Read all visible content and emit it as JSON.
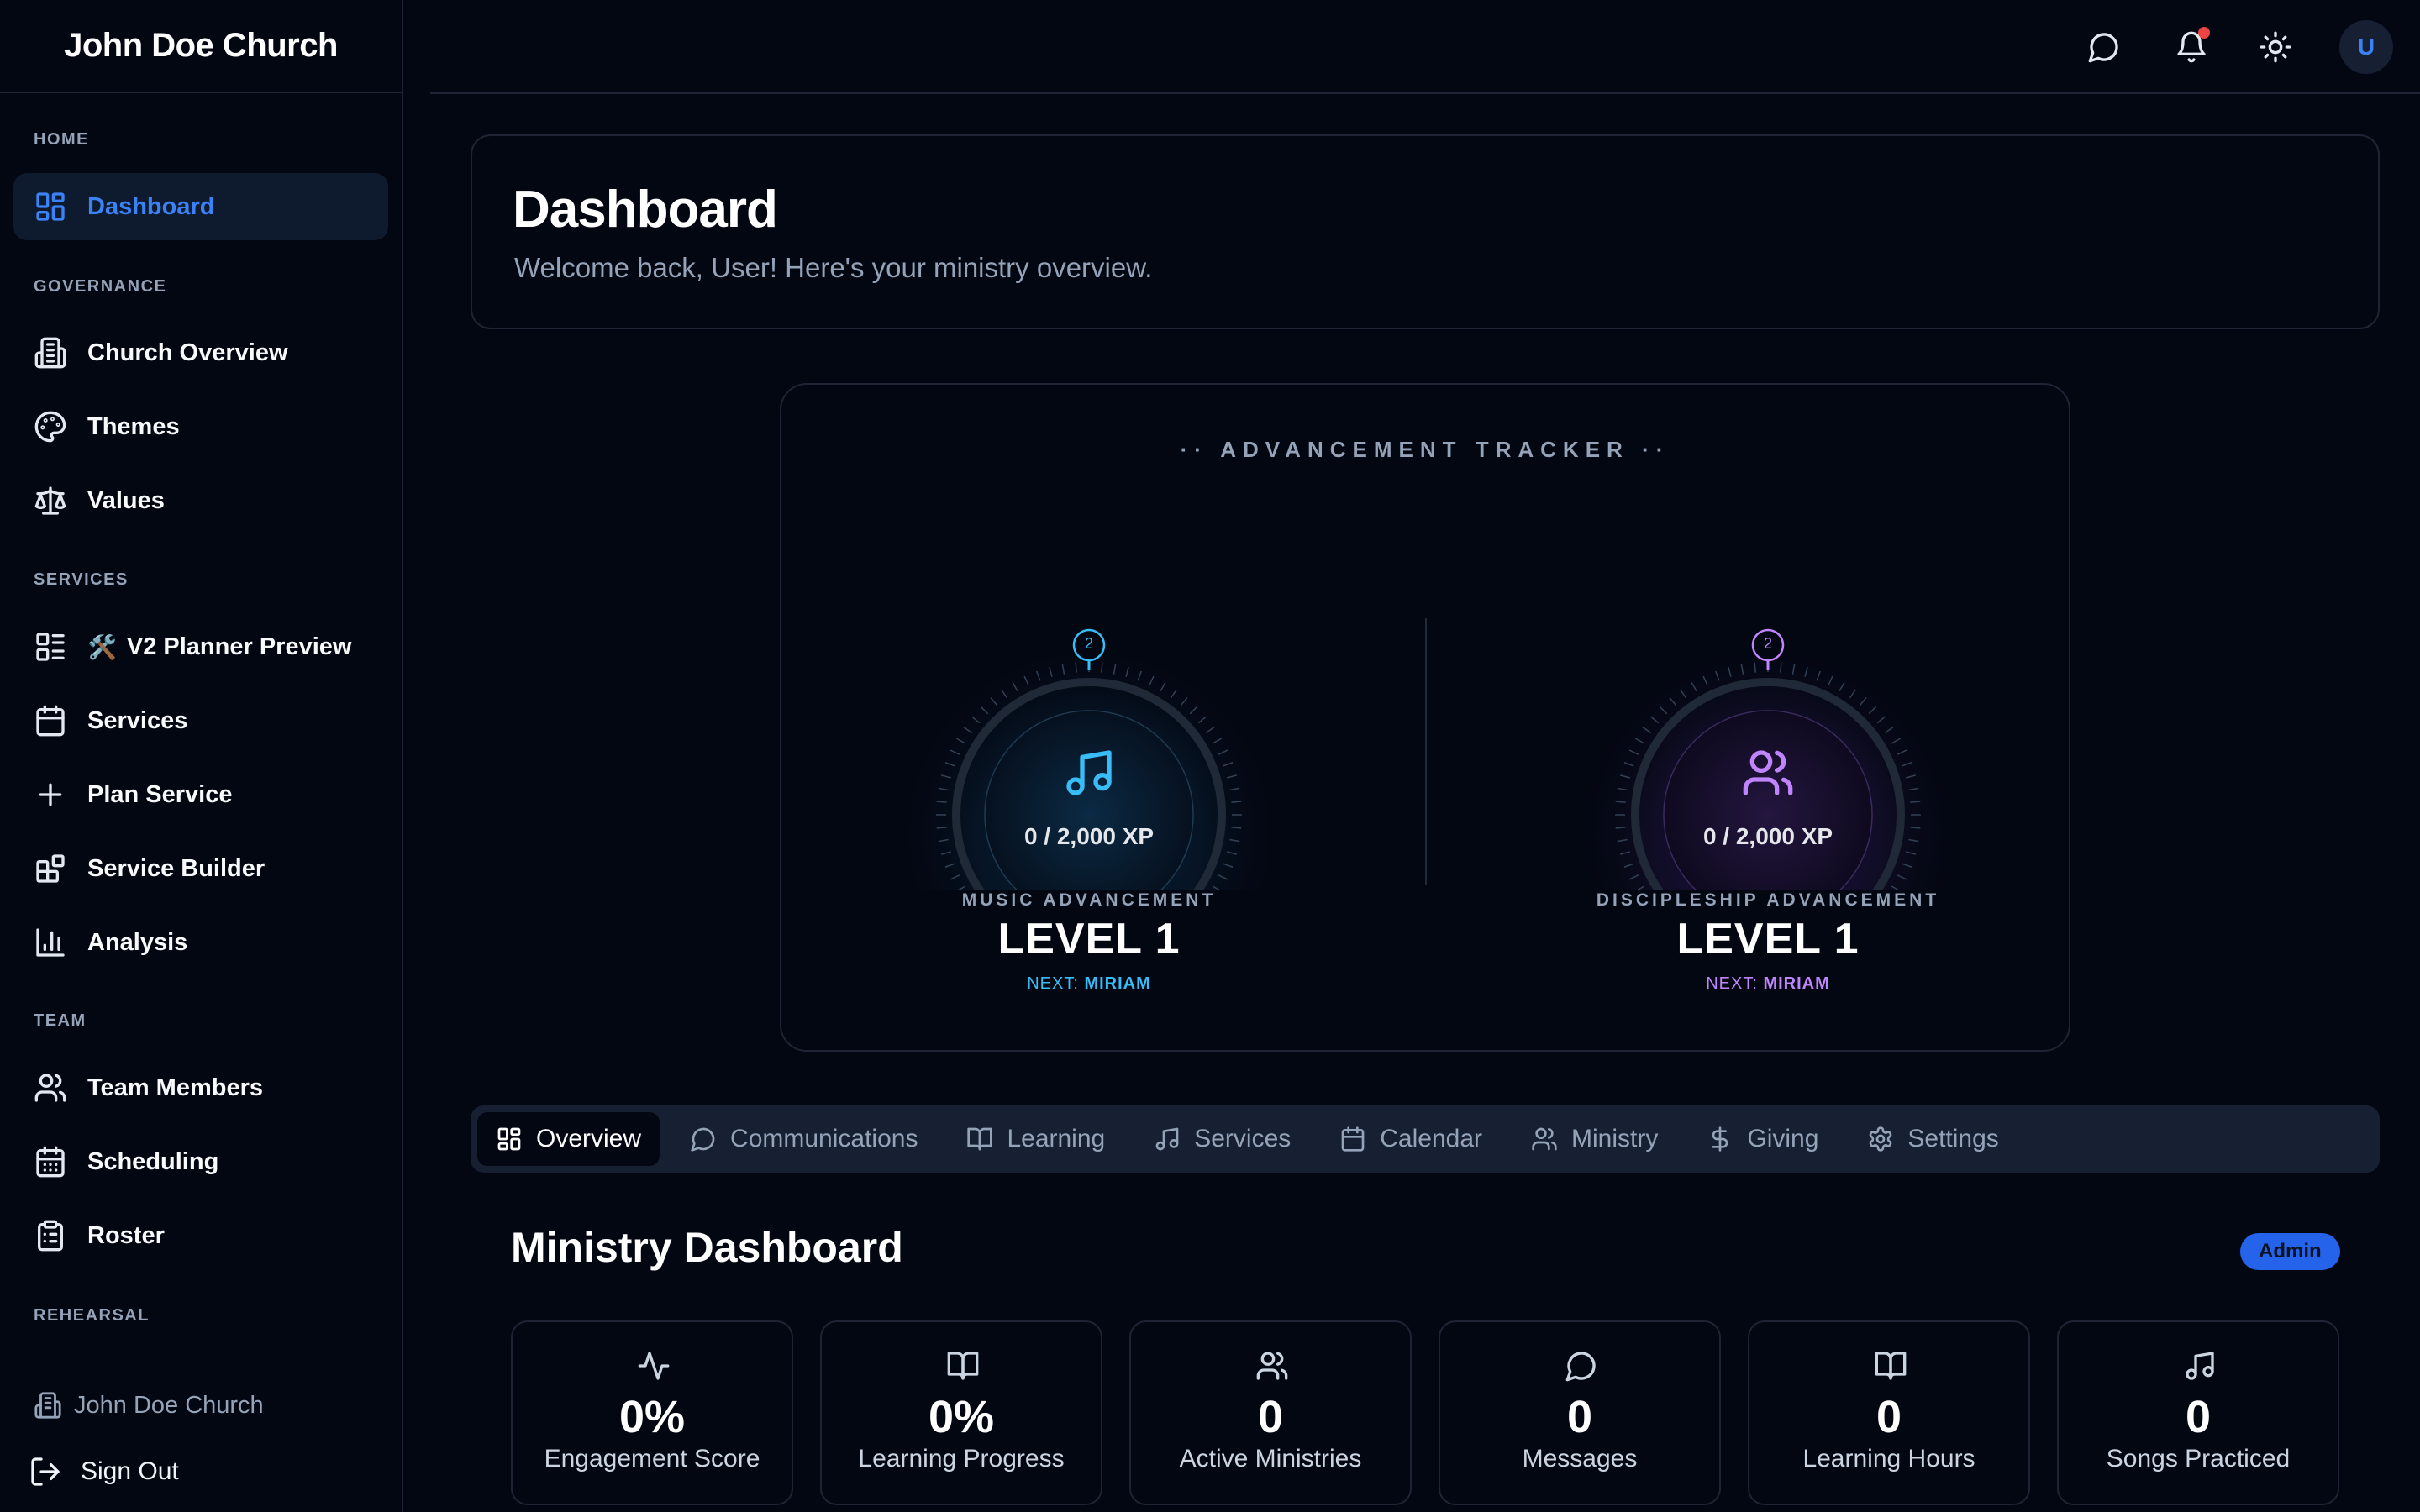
{
  "sidebar": {
    "brand": "John Doe Church",
    "sections": {
      "home": "HOME",
      "governance": "GOVERNANCE",
      "services": "SERVICES",
      "team": "TEAM",
      "rehearsal": "REHEARSAL"
    },
    "items": {
      "dashboard": "Dashboard",
      "church_overview": "Church Overview",
      "themes": "Themes",
      "values": "Values",
      "v2_planner_emoji": "🛠️",
      "v2_planner": "V2 Planner Preview",
      "services": "Services",
      "plan_service": "Plan Service",
      "service_builder": "Service Builder",
      "analysis": "Analysis",
      "team_members": "Team Members",
      "scheduling": "Scheduling",
      "roster": "Roster"
    },
    "footer_church": "John Doe Church",
    "sign_out": "Sign Out"
  },
  "topbar": {
    "avatar_initial": "U",
    "icons": [
      "message-icon",
      "bell-icon",
      "sun-icon"
    ]
  },
  "welcome": {
    "title": "Dashboard",
    "subtitle": "Welcome back, User! Here's your ministry overview."
  },
  "tracker": {
    "title": "·· ADVANCEMENT TRACKER ··",
    "music": {
      "badge": "2",
      "xp": "0 / 2,000 XP",
      "label": "MUSIC ADVANCEMENT",
      "level": "LEVEL 1",
      "next_prefix": "NEXT:",
      "next_name": "MIRIAM",
      "accent": "#38bdf8",
      "progress": 0
    },
    "discipleship": {
      "badge": "2",
      "xp": "0 / 2,000 XP",
      "label": "DISCIPLESHIP ADVANCEMENT",
      "level": "LEVEL 1",
      "next_prefix": "NEXT:",
      "next_name": "MIRIAM",
      "accent": "#c084fc",
      "progress": 0
    }
  },
  "tabs": [
    {
      "label": "Overview",
      "icon": "grid-icon",
      "active": true
    },
    {
      "label": "Communications",
      "icon": "message-icon"
    },
    {
      "label": "Learning",
      "icon": "book-icon"
    },
    {
      "label": "Services",
      "icon": "music-icon"
    },
    {
      "label": "Calendar",
      "icon": "calendar-icon"
    },
    {
      "label": "Ministry",
      "icon": "users-icon"
    },
    {
      "label": "Giving",
      "icon": "dollar-icon"
    },
    {
      "label": "Settings",
      "icon": "gear-icon"
    }
  ],
  "ministry": {
    "title": "Ministry Dashboard",
    "badge": "Admin",
    "stats": [
      {
        "value": "0%",
        "label": "Engagement Score",
        "icon": "activity-icon"
      },
      {
        "value": "0%",
        "label": "Learning Progress",
        "icon": "book-icon"
      },
      {
        "value": "0",
        "label": "Active Ministries",
        "icon": "users-icon"
      },
      {
        "value": "0",
        "label": "Messages",
        "icon": "message-icon"
      },
      {
        "value": "0",
        "label": "Learning Hours",
        "icon": "book-icon"
      },
      {
        "value": "0",
        "label": "Songs Practiced",
        "icon": "music-icon"
      }
    ]
  },
  "colors": {
    "accent": "#3b82f6",
    "background": "#030712",
    "border": "#1e2433",
    "music_accent": "#38bdf8",
    "discipleship_accent": "#c084fc"
  }
}
